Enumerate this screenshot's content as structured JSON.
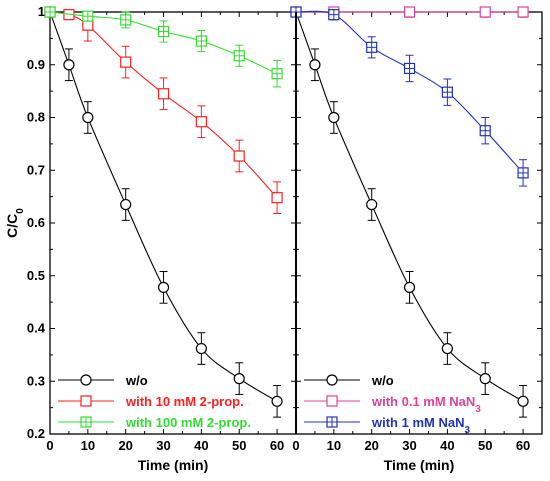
{
  "chart_data": [
    {
      "type": "line",
      "panel": "left",
      "xlabel": "Time (min)",
      "ylabel": "C/C",
      "ylabel_sub": "0",
      "xlim": [
        0,
        65
      ],
      "ylim": [
        0.2,
        1.0
      ],
      "x_ticks": [
        0,
        10,
        20,
        30,
        40,
        50,
        60
      ],
      "y_ticks": [
        0.2,
        0.3,
        0.4,
        0.5,
        0.6,
        0.7,
        0.8,
        0.9,
        1.0
      ],
      "y_tick_labels": [
        "0.2",
        "0.3",
        "0.4",
        "0.5",
        "0.6",
        "0.7",
        "0.8",
        "0.9",
        "1"
      ],
      "legend_position": "bottom-left",
      "series": [
        {
          "name": "w/o",
          "color": "#000000",
          "marker": "circle",
          "x": [
            0,
            5,
            10,
            20,
            30,
            40,
            50,
            60
          ],
          "y": [
            1.0,
            0.9,
            0.8,
            0.635,
            0.478,
            0.362,
            0.305,
            0.262
          ],
          "err": [
            0.005,
            0.03,
            0.03,
            0.03,
            0.03,
            0.03,
            0.03,
            0.03
          ]
        },
        {
          "name": "with 10 mM 2-prop.",
          "color": "#ff2020",
          "marker": "square",
          "x": [
            0,
            5,
            10,
            20,
            30,
            40,
            50,
            60
          ],
          "y": [
            1.0,
            0.995,
            0.975,
            0.905,
            0.845,
            0.792,
            0.727,
            0.648
          ],
          "err": [
            0.005,
            0.008,
            0.03,
            0.03,
            0.03,
            0.03,
            0.03,
            0.03
          ]
        },
        {
          "name": "with 100 mM 2-prop.",
          "color": "#33dd33",
          "marker": "crossed-square",
          "x": [
            0,
            10,
            20,
            30,
            40,
            50,
            60
          ],
          "y": [
            1.0,
            0.992,
            0.985,
            0.963,
            0.945,
            0.917,
            0.883
          ],
          "err": [
            0.005,
            0.008,
            0.015,
            0.02,
            0.02,
            0.02,
            0.025
          ]
        }
      ]
    },
    {
      "type": "line",
      "panel": "right",
      "xlabel": "Time (min)",
      "xlim": [
        0,
        65
      ],
      "ylim": [
        0.2,
        1.0
      ],
      "x_ticks": [
        0,
        10,
        20,
        30,
        40,
        50,
        60
      ],
      "legend_position": "bottom-left",
      "series": [
        {
          "name": "w/o",
          "color": "#000000",
          "marker": "circle",
          "x": [
            0,
            5,
            10,
            20,
            30,
            40,
            50,
            60
          ],
          "y": [
            1.0,
            0.9,
            0.8,
            0.635,
            0.478,
            0.362,
            0.305,
            0.262
          ],
          "err": [
            0.005,
            0.03,
            0.03,
            0.03,
            0.03,
            0.03,
            0.03,
            0.03
          ]
        },
        {
          "name": "with 0.1 mM NaN",
          "name_sub": "3",
          "color": "#e0409a",
          "marker": "square",
          "x": [
            0,
            10,
            30,
            50,
            60
          ],
          "y": [
            1.0,
            1.0,
            1.0,
            1.0,
            1.0
          ],
          "err": [
            0.005,
            0.01,
            0.01,
            0.01,
            0.01
          ]
        },
        {
          "name": "with 1 mM NaN",
          "name_sub": "3",
          "color": "#2233bb",
          "marker": "crossed-square",
          "x": [
            0,
            10,
            20,
            30,
            40,
            50,
            60
          ],
          "y": [
            1.0,
            0.995,
            0.933,
            0.893,
            0.848,
            0.775,
            0.695
          ],
          "err": [
            0.005,
            0.01,
            0.02,
            0.025,
            0.025,
            0.025,
            0.025
          ]
        }
      ]
    }
  ]
}
